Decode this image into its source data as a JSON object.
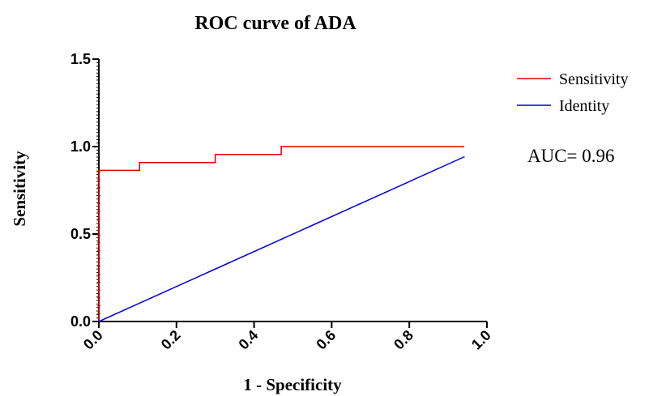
{
  "chart_data": {
    "type": "line",
    "title": "ROC curve of ADA",
    "xlabel": "1 - Specificity",
    "ylabel": "Sensitivity",
    "xlim": [
      0,
      1.0
    ],
    "ylim": [
      0,
      1.5
    ],
    "x_ticks": [
      "0.0",
      "0.2",
      "0.4",
      "0.6",
      "0.8",
      "1.0"
    ],
    "y_ticks": [
      "0.0",
      "0.5",
      "1.0",
      "1.5"
    ],
    "legend_position": "top-right",
    "series": [
      {
        "name": "Sensitivity",
        "color": "#e00000",
        "step": true,
        "points": [
          [
            0,
            0
          ],
          [
            0,
            0.864
          ],
          [
            0.105,
            0.864
          ],
          [
            0.105,
            0.909
          ],
          [
            0.3,
            0.909
          ],
          [
            0.3,
            0.955
          ],
          [
            0.47,
            0.955
          ],
          [
            0.47,
            1.0
          ],
          [
            0.94,
            1.0
          ]
        ]
      },
      {
        "name": "Identity",
        "color": "#0000e0",
        "step": false,
        "points": [
          [
            0,
            0
          ],
          [
            0.94,
            0.94
          ]
        ]
      }
    ],
    "annotations": [
      "AUC= 0.96"
    ]
  }
}
